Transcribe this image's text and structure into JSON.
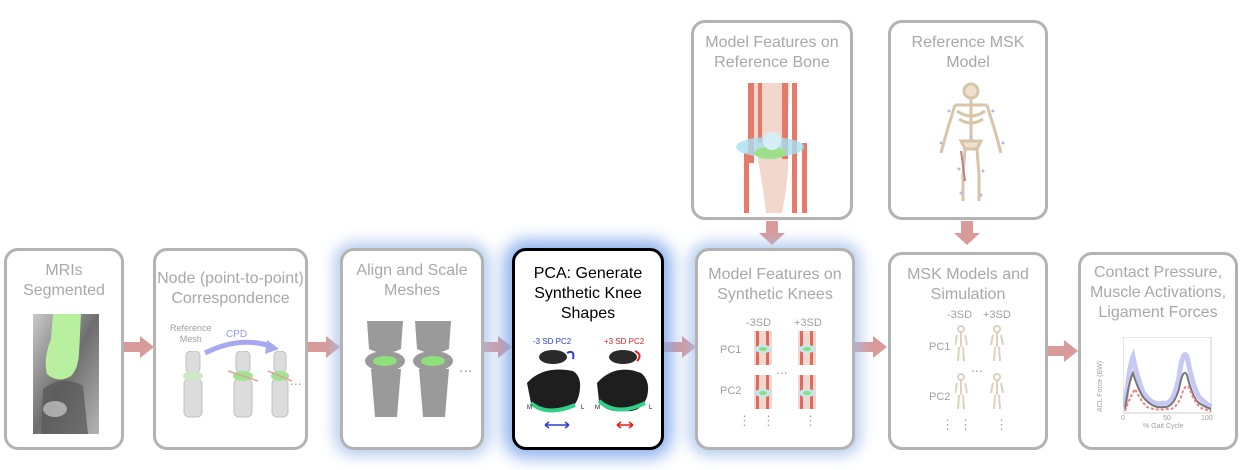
{
  "boxes": {
    "mri": {
      "title": "MRIs\nSegmented"
    },
    "node": {
      "title": "Node (point-to-point)\nCorrespondence",
      "ref_mesh": "Reference\nMesh",
      "cpd": "CPD",
      "ellipsis": "..."
    },
    "align": {
      "title": "Align and Scale\nMeshes",
      "ellipsis": "..."
    },
    "pca": {
      "title": "PCA: Generate\nSynthetic Knee\nShapes",
      "minus": "-3 SD PC2",
      "plus": "+3 SD PC2",
      "m1": "M",
      "l1": "L",
      "m2": "M",
      "l2": "L"
    },
    "features": {
      "title": "Model Features on\nSynthetic Knees",
      "col1": "-3SD",
      "col2": "+3SD",
      "row1": "PC1",
      "row2": "PC2",
      "dots": "⋮",
      "ellipsis": "..."
    },
    "ref_bone": {
      "title": "Model Features on\nReference Bone"
    },
    "ref_msk": {
      "title": "Reference MSK\nModel"
    },
    "msk": {
      "title": "MSK Models and\nSimulation",
      "col1": "-3SD",
      "col2": "+3SD",
      "row1": "PC1",
      "row2": "PC2",
      "dots": "⋮",
      "ellipsis": "..."
    },
    "output": {
      "title": "Contact Pressure,\nMuscle Activations,\nLigament Forces",
      "ylabel": "ACL Force (BW)",
      "xlabel": "% Gait Cycle",
      "x0": "0",
      "x50": "50",
      "x100": "100"
    }
  },
  "colors": {
    "arrow": "#d99a9a",
    "box_border": "#b3b3b3",
    "glow": "#a0bee8",
    "green": "#7ddc6a"
  }
}
